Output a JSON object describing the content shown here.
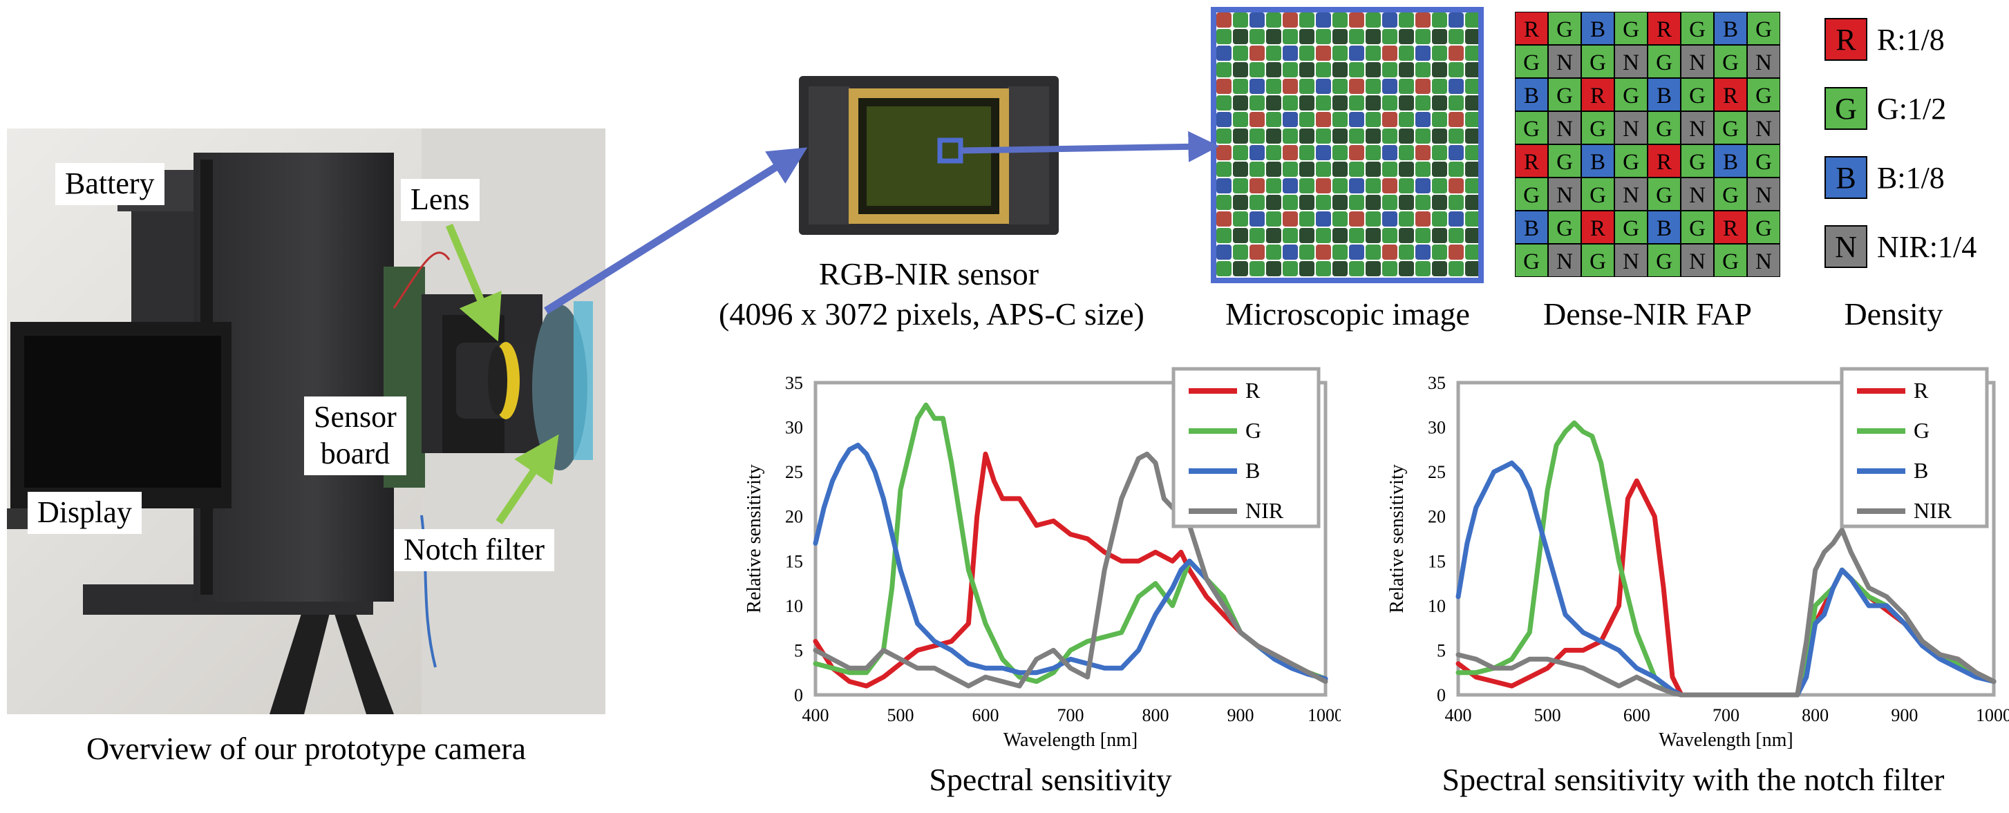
{
  "camera_photo": {
    "labels": {
      "battery": "Battery",
      "lens": "Lens",
      "sensor_board": "Sensor\nboard",
      "display": "Display",
      "notch_filter": "Notch filter"
    },
    "caption": "Overview of our prototype camera"
  },
  "sensor": {
    "caption_line1": "RGB-NIR sensor",
    "caption_line2": "(4096 x 3072 pixels, APS-C size)"
  },
  "microscopic": {
    "caption": "Microscopic image"
  },
  "fap": {
    "caption": "Dense-NIR FAP",
    "grid": [
      [
        "R",
        "G",
        "B",
        "G",
        "R",
        "G",
        "B",
        "G"
      ],
      [
        "G",
        "N",
        "G",
        "N",
        "G",
        "N",
        "G",
        "N"
      ],
      [
        "B",
        "G",
        "R",
        "G",
        "B",
        "G",
        "R",
        "G"
      ],
      [
        "G",
        "N",
        "G",
        "N",
        "G",
        "N",
        "G",
        "N"
      ],
      [
        "R",
        "G",
        "B",
        "G",
        "R",
        "G",
        "B",
        "G"
      ],
      [
        "G",
        "N",
        "G",
        "N",
        "G",
        "N",
        "G",
        "N"
      ],
      [
        "B",
        "G",
        "R",
        "G",
        "B",
        "G",
        "R",
        "G"
      ],
      [
        "G",
        "N",
        "G",
        "N",
        "G",
        "N",
        "G",
        "N"
      ]
    ]
  },
  "density": {
    "caption": "Density",
    "items": [
      {
        "letter": "R",
        "text": "R:1/8",
        "color": "#d91f26"
      },
      {
        "letter": "G",
        "text": "G:1/2",
        "color": "#5cb84f"
      },
      {
        "letter": "B",
        "text": "B:1/8",
        "color": "#3d6fc4"
      },
      {
        "letter": "N",
        "text": "NIR:1/4",
        "color": "#7f7f7f"
      }
    ]
  },
  "colors": {
    "R": "#d91f26",
    "G": "#5cb84f",
    "B": "#3d6fc4",
    "N": "#7f7f7f",
    "arrow": "#5b6fc6",
    "frame": "#4f6ccf"
  },
  "chart_data": [
    {
      "type": "line",
      "title": "Spectral sensitivity",
      "xlabel": "Wavelength [nm]",
      "ylabel": "Relative sensitivity",
      "xlim": [
        400,
        1000
      ],
      "ylim": [
        0,
        35
      ],
      "xticks": [
        400,
        500,
        600,
        700,
        800,
        900,
        1000
      ],
      "yticks": [
        0,
        5,
        10,
        15,
        20,
        25,
        30,
        35
      ],
      "legend": "top-right",
      "series": [
        {
          "name": "R",
          "color": "#d91f26",
          "x": [
            400,
            420,
            440,
            460,
            480,
            500,
            520,
            540,
            560,
            580,
            590,
            600,
            610,
            620,
            640,
            660,
            680,
            700,
            720,
            740,
            760,
            780,
            800,
            820,
            830,
            840,
            860,
            880,
            900,
            920,
            940,
            960,
            980,
            1000
          ],
          "y": [
            6,
            3,
            1.5,
            1,
            2,
            3.5,
            5,
            5.5,
            6,
            8,
            20,
            27,
            24,
            22,
            22,
            19,
            19.5,
            18,
            17.5,
            16,
            15,
            15,
            16,
            15,
            16,
            14,
            11,
            9,
            7,
            5.5,
            4.5,
            3.5,
            2.5,
            1.8
          ]
        },
        {
          "name": "G",
          "color": "#5cb84f",
          "x": [
            400,
            420,
            440,
            460,
            480,
            490,
            500,
            520,
            530,
            540,
            550,
            560,
            580,
            600,
            620,
            640,
            660,
            680,
            700,
            720,
            740,
            760,
            780,
            800,
            820,
            840,
            860,
            880,
            900,
            920,
            940,
            960,
            980,
            1000
          ],
          "y": [
            3.5,
            3,
            2.5,
            2.5,
            5,
            12,
            23,
            31,
            32.5,
            31,
            31,
            26,
            14,
            8,
            4,
            2,
            1.5,
            2.5,
            5,
            6,
            6.5,
            7,
            11,
            12.5,
            10,
            15,
            13,
            11,
            7,
            5.5,
            4,
            3.5,
            2.5,
            1.8
          ]
        },
        {
          "name": "B",
          "color": "#3d6fc4",
          "x": [
            400,
            410,
            420,
            430,
            440,
            450,
            460,
            470,
            480,
            500,
            520,
            540,
            560,
            580,
            600,
            620,
            640,
            660,
            680,
            700,
            720,
            740,
            760,
            780,
            800,
            820,
            830,
            840,
            860,
            880,
            900,
            920,
            940,
            960,
            980,
            1000
          ],
          "y": [
            17,
            21,
            24,
            26,
            27.5,
            28,
            27,
            25,
            22,
            14,
            8,
            6,
            5,
            3.5,
            3,
            3,
            2.5,
            2.5,
            3,
            4,
            3.5,
            3,
            3,
            5,
            9,
            12,
            14,
            15,
            13,
            10,
            7,
            5.5,
            4,
            3,
            2.3,
            1.8
          ]
        },
        {
          "name": "NIR",
          "color": "#7f7f7f",
          "x": [
            400,
            420,
            440,
            460,
            480,
            500,
            520,
            540,
            560,
            580,
            600,
            620,
            640,
            660,
            680,
            700,
            720,
            740,
            760,
            780,
            790,
            800,
            810,
            820,
            830,
            840,
            860,
            880,
            900,
            920,
            940,
            960,
            980,
            1000
          ],
          "y": [
            5,
            4,
            3,
            3,
            5,
            4,
            3,
            3,
            2,
            1,
            2,
            1.5,
            1,
            4,
            5,
            3,
            2,
            14,
            22,
            26.5,
            27,
            26,
            22,
            21,
            20,
            19,
            13,
            10,
            7,
            5.5,
            4.5,
            3.5,
            2.5,
            1.5
          ]
        }
      ]
    },
    {
      "type": "line",
      "title": "Spectral sensitivity with the notch filter",
      "xlabel": "Wavelength [nm]",
      "ylabel": "Relative sensitivity",
      "xlim": [
        400,
        1000
      ],
      "ylim": [
        0,
        35
      ],
      "xticks": [
        400,
        500,
        600,
        700,
        800,
        900,
        1000
      ],
      "yticks": [
        0,
        5,
        10,
        15,
        20,
        25,
        30,
        35
      ],
      "legend": "top-right",
      "series": [
        {
          "name": "R",
          "color": "#d91f26",
          "x": [
            400,
            420,
            440,
            460,
            480,
            500,
            520,
            540,
            560,
            580,
            590,
            600,
            610,
            620,
            630,
            640,
            650,
            700,
            780,
            790,
            800,
            810,
            820,
            830,
            840,
            860,
            880,
            900,
            920,
            940,
            960,
            980,
            1000
          ],
          "y": [
            3.5,
            2,
            1.5,
            1,
            2,
            3,
            5,
            5,
            6,
            10,
            22,
            24,
            22,
            20,
            12,
            2,
            0,
            0,
            0,
            3,
            8,
            10,
            12,
            14,
            13,
            11,
            9.5,
            8,
            6,
            4.5,
            4,
            2.5,
            1.5
          ]
        },
        {
          "name": "G",
          "color": "#5cb84f",
          "x": [
            400,
            420,
            440,
            460,
            480,
            490,
            500,
            510,
            520,
            530,
            540,
            550,
            560,
            580,
            600,
            620,
            640,
            650,
            700,
            780,
            790,
            800,
            810,
            820,
            830,
            840,
            860,
            880,
            900,
            920,
            940,
            960,
            980,
            1000
          ],
          "y": [
            2.5,
            2.5,
            3,
            4,
            7,
            15,
            23,
            28,
            29.5,
            30.5,
            29.5,
            29,
            26,
            15,
            7,
            2,
            0.3,
            0,
            0,
            0,
            3,
            10,
            11,
            12,
            14,
            13,
            11,
            10,
            8,
            6,
            4.5,
            3.5,
            2.5,
            1.5
          ]
        },
        {
          "name": "B",
          "color": "#3d6fc4",
          "x": [
            400,
            410,
            420,
            430,
            440,
            450,
            460,
            470,
            480,
            500,
            520,
            540,
            560,
            580,
            600,
            620,
            640,
            650,
            700,
            780,
            790,
            800,
            810,
            820,
            830,
            840,
            860,
            880,
            900,
            920,
            940,
            960,
            980,
            1000
          ],
          "y": [
            11,
            17,
            21,
            23,
            25,
            25.5,
            26,
            25,
            23,
            16,
            9,
            7,
            6,
            5,
            3,
            2,
            0.5,
            0,
            0,
            0,
            2,
            8,
            9,
            12,
            14,
            13,
            10,
            10,
            8,
            5.5,
            4,
            3,
            2,
            1.5
          ]
        },
        {
          "name": "NIR",
          "color": "#7f7f7f",
          "x": [
            400,
            420,
            440,
            460,
            480,
            500,
            520,
            540,
            560,
            580,
            600,
            620,
            640,
            650,
            700,
            780,
            790,
            800,
            810,
            820,
            830,
            840,
            860,
            880,
            900,
            920,
            940,
            960,
            980,
            1000
          ],
          "y": [
            4.5,
            4,
            3,
            3,
            4,
            4,
            3.5,
            3,
            2,
            1,
            2,
            1,
            0.2,
            0,
            0,
            0,
            6,
            14,
            16,
            17,
            18.5,
            16,
            12,
            11,
            9,
            6,
            4.5,
            4,
            2.5,
            1.5
          ]
        }
      ]
    }
  ]
}
